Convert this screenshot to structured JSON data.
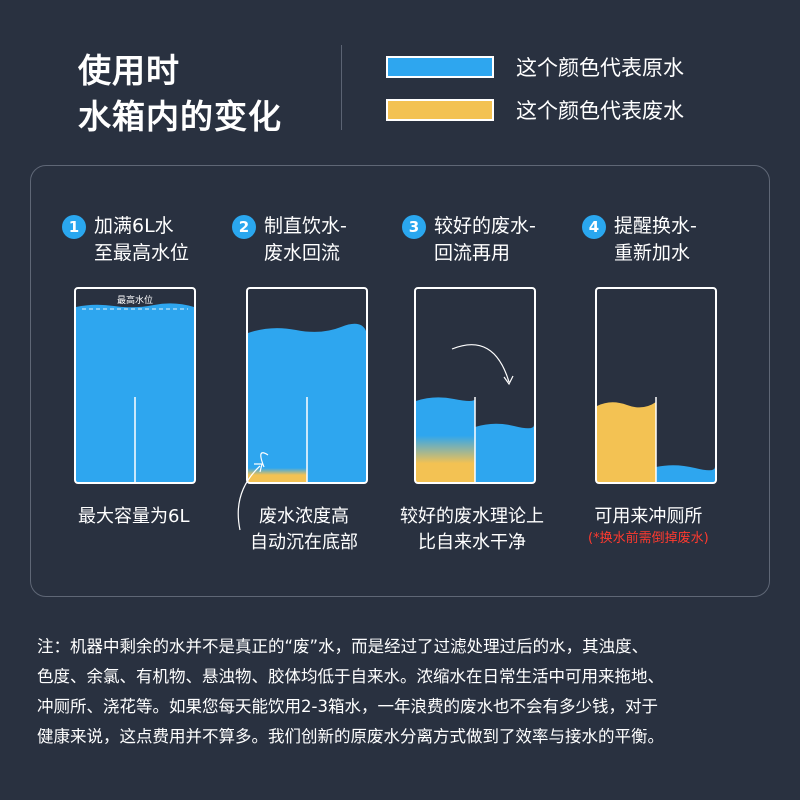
{
  "title": {
    "line1": "使用时",
    "line2": "水箱内的变化"
  },
  "legend": [
    {
      "label": "这个颜色代表原水",
      "color": "#2ea6ef"
    },
    {
      "label": "这个颜色代表废水",
      "color": "#f3c253"
    }
  ],
  "steps": [
    {
      "number": "1",
      "title_line1": "加满6L水",
      "title_line2": "至最高水位",
      "caption_line1": "最大容量为6L",
      "caption_line2": "",
      "tank_label": "最高水位"
    },
    {
      "number": "2",
      "title_line1": "制直饮水-",
      "title_line2": "废水回流",
      "caption_line1": "废水浓度高",
      "caption_line2": "自动沉在底部"
    },
    {
      "number": "3",
      "title_line1": "较好的废水-",
      "title_line2": "回流再用",
      "caption_line1": "较好的废水理论上",
      "caption_line2": "比自来水干净"
    },
    {
      "number": "4",
      "title_line1": "提醒换水-",
      "title_line2": "重新加水",
      "caption_line1": "可用来冲厕所",
      "caption_line2": "(*换水前需倒掉废水)"
    }
  ],
  "colors": {
    "raw_water": "#2ea6ef",
    "waste_water": "#f3c253",
    "background": "#293140",
    "accent_number": "#2aa7ef",
    "warning": "#ff3a2f"
  },
  "footnote": {
    "line1": "注：机器中剩余的水并不是真正的“废”水，而是经过了过滤处理过后的水，其浊度、",
    "line2": "色度、余氯、有机物、悬浊物、胶体均低于自来水。浓缩水在日常生活中可用来拖地、",
    "line3": "冲厕所、浇花等。如果您每天能饮用2-3箱水，一年浪费的废水也不会有多少钱，对于",
    "line4": "健康来说，这点费用并不算多。我们创新的原废水分离方式做到了效率与接水的平衡。"
  }
}
